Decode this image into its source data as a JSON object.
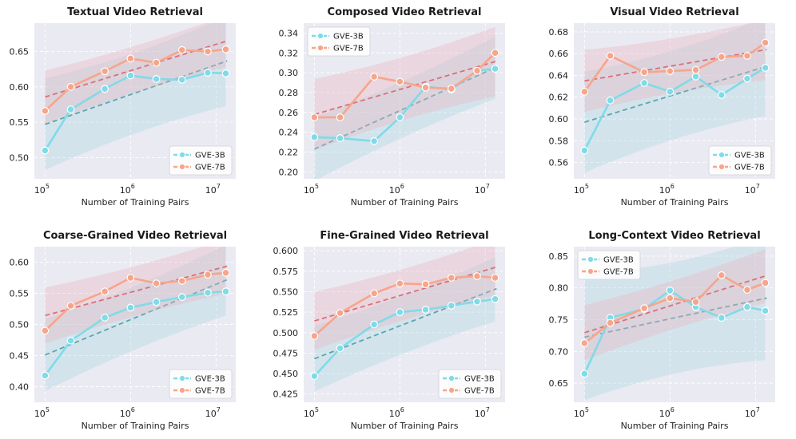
{
  "figure": {
    "series_colors": {
      "GVE-3B": "#7fdbe8",
      "GVE-7B": "#f7a58a"
    },
    "trend_colors": {
      "GVE-3B": "#5aa6ad",
      "GVE-7B": "#d9707a"
    },
    "band_colors": {
      "GVE-3B": "#a9d6e2",
      "GVE-7B": "#eab3bd"
    },
    "plot_bg": "#eaeaf2"
  },
  "chart_data": [
    {
      "type": "line",
      "title": "Textual Video Retrieval",
      "xlabel": "Number of Training Pairs",
      "x": [
        100000,
        200000,
        500000,
        1000000,
        2000000,
        4000000,
        8000000,
        13000000
      ],
      "xscale": "log",
      "xticks": [
        {
          "base": "10",
          "exp": "5"
        },
        {
          "base": "10",
          "exp": "6"
        },
        {
          "base": "10",
          "exp": "7"
        }
      ],
      "ylim": [
        0.47,
        0.69
      ],
      "yticks": [
        "0.50",
        "0.55",
        "0.60",
        "0.65"
      ],
      "legend": "bottom-right",
      "series": [
        {
          "name": "GVE-3B",
          "values": [
            0.51,
            0.568,
            0.597,
            0.616,
            0.611,
            0.61,
            0.62,
            0.619
          ]
        },
        {
          "name": "GVE-7B",
          "values": [
            0.566,
            0.6,
            0.622,
            0.64,
            0.634,
            0.652,
            0.65,
            0.653
          ]
        }
      ]
    },
    {
      "type": "line",
      "title": "Composed Video Retrieval",
      "xlabel": "Number of Training Pairs",
      "x": [
        100000,
        200000,
        500000,
        1000000,
        2000000,
        4000000,
        8000000,
        13000000
      ],
      "xscale": "log",
      "xticks": [
        {
          "base": "10",
          "exp": "5"
        },
        {
          "base": "10",
          "exp": "6"
        },
        {
          "base": "10",
          "exp": "7"
        }
      ],
      "ylim": [
        0.193,
        0.35
      ],
      "yticks": [
        "0.20",
        "0.22",
        "0.24",
        "0.26",
        "0.28",
        "0.30",
        "0.32",
        "0.34"
      ],
      "legend": "top-left",
      "series": [
        {
          "name": "GVE-3B",
          "values": [
            0.235,
            0.234,
            0.231,
            0.255,
            0.286,
            0.283,
            0.302,
            0.304
          ]
        },
        {
          "name": "GVE-7B",
          "values": [
            0.255,
            0.255,
            0.296,
            0.291,
            0.285,
            0.284,
            0.302,
            0.32
          ]
        }
      ]
    },
    {
      "type": "line",
      "title": "Visual Video Retrieval",
      "xlabel": "Number of Training Pairs",
      "x": [
        100000,
        200000,
        500000,
        1000000,
        2000000,
        4000000,
        8000000,
        13000000
      ],
      "xscale": "log",
      "xticks": [
        {
          "base": "10",
          "exp": "5"
        },
        {
          "base": "10",
          "exp": "6"
        },
        {
          "base": "10",
          "exp": "7"
        }
      ],
      "ylim": [
        0.545,
        0.688
      ],
      "yticks": [
        "0.56",
        "0.58",
        "0.60",
        "0.62",
        "0.64",
        "0.66",
        "0.68"
      ],
      "legend": "bottom-right",
      "series": [
        {
          "name": "GVE-3B",
          "values": [
            0.571,
            0.617,
            0.633,
            0.625,
            0.639,
            0.622,
            0.637,
            0.647
          ]
        },
        {
          "name": "GVE-7B",
          "values": [
            0.625,
            0.658,
            0.643,
            0.644,
            0.645,
            0.657,
            0.658,
            0.67
          ]
        }
      ]
    },
    {
      "type": "line",
      "title": "Coarse-Grained Video Retrieval",
      "xlabel": "Number of Training Pairs",
      "x": [
        100000,
        200000,
        500000,
        1000000,
        2000000,
        4000000,
        8000000,
        13000000
      ],
      "xscale": "log",
      "xticks": [
        {
          "base": "10",
          "exp": "5"
        },
        {
          "base": "10",
          "exp": "6"
        },
        {
          "base": "10",
          "exp": "7"
        }
      ],
      "ylim": [
        0.375,
        0.625
      ],
      "yticks": [
        "0.40",
        "0.45",
        "0.50",
        "0.55",
        "0.60"
      ],
      "legend": "bottom-right",
      "series": [
        {
          "name": "GVE-3B",
          "values": [
            0.418,
            0.474,
            0.511,
            0.527,
            0.536,
            0.544,
            0.551,
            0.553
          ]
        },
        {
          "name": "GVE-7B",
          "values": [
            0.49,
            0.53,
            0.553,
            0.575,
            0.566,
            0.57,
            0.58,
            0.583
          ]
        }
      ]
    },
    {
      "type": "line",
      "title": "Fine-Grained Video Retrieval",
      "xlabel": "Number of Training Pairs",
      "x": [
        100000,
        200000,
        500000,
        1000000,
        2000000,
        4000000,
        8000000,
        13000000
      ],
      "xscale": "log",
      "xticks": [
        {
          "base": "10",
          "exp": "5"
        },
        {
          "base": "10",
          "exp": "6"
        },
        {
          "base": "10",
          "exp": "7"
        }
      ],
      "ylim": [
        0.415,
        0.605
      ],
      "yticks": [
        "0.425",
        "0.450",
        "0.475",
        "0.500",
        "0.525",
        "0.550",
        "0.575",
        "0.600"
      ],
      "legend": "bottom-right",
      "series": [
        {
          "name": "GVE-3B",
          "values": [
            0.447,
            0.481,
            0.51,
            0.525,
            0.528,
            0.533,
            0.538,
            0.541
          ]
        },
        {
          "name": "GVE-7B",
          "values": [
            0.496,
            0.524,
            0.548,
            0.56,
            0.559,
            0.567,
            0.569,
            0.567
          ]
        }
      ]
    },
    {
      "type": "line",
      "title": "Long-Context Video Retrieval",
      "xlabel": "Number of Training Pairs",
      "x": [
        100000,
        200000,
        500000,
        1000000,
        2000000,
        4000000,
        8000000,
        13000000
      ],
      "xscale": "log",
      "xticks": [
        {
          "base": "10",
          "exp": "5"
        },
        {
          "base": "10",
          "exp": "6"
        },
        {
          "base": "10",
          "exp": "7"
        }
      ],
      "ylim": [
        0.62,
        0.865
      ],
      "yticks": [
        "0.65",
        "0.70",
        "0.75",
        "0.80",
        "0.85"
      ],
      "legend": "top-left",
      "series": [
        {
          "name": "GVE-3B",
          "values": [
            0.665,
            0.753,
            0.767,
            0.796,
            0.77,
            0.753,
            0.77,
            0.764
          ]
        },
        {
          "name": "GVE-7B",
          "values": [
            0.713,
            0.745,
            0.768,
            0.784,
            0.778,
            0.82,
            0.797,
            0.808
          ]
        }
      ]
    }
  ]
}
